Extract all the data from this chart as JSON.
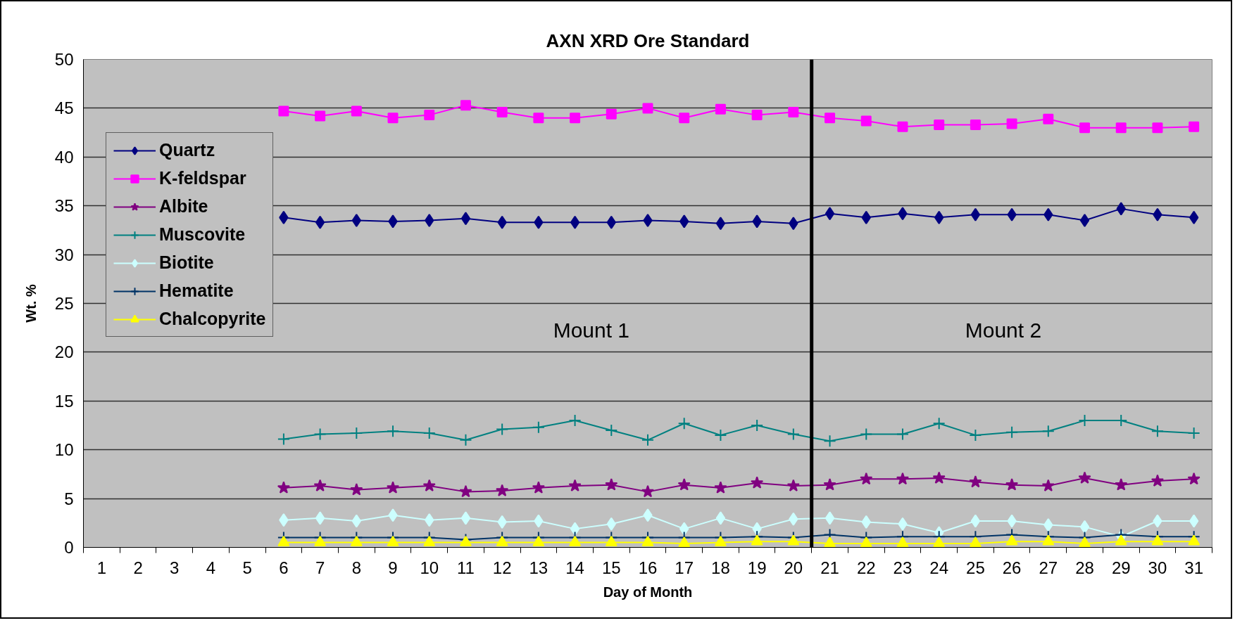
{
  "chart_data": {
    "type": "line",
    "title": "AXN XRD Ore Standard",
    "xlabel": "Day of Month",
    "ylabel": "Wt. %",
    "x": [
      6,
      7,
      8,
      9,
      10,
      11,
      12,
      13,
      14,
      15,
      16,
      17,
      18,
      19,
      20,
      21,
      22,
      23,
      24,
      25,
      26,
      27,
      28,
      29,
      30,
      31
    ],
    "xlim": [
      0.5,
      31.5
    ],
    "xticks": [
      1,
      2,
      3,
      4,
      5,
      6,
      7,
      8,
      9,
      10,
      11,
      12,
      13,
      14,
      15,
      16,
      17,
      18,
      19,
      20,
      21,
      22,
      23,
      24,
      25,
      26,
      27,
      28,
      29,
      30,
      31
    ],
    "ylim": [
      0,
      50
    ],
    "yticks": [
      0,
      5,
      10,
      15,
      20,
      25,
      30,
      35,
      40,
      45,
      50
    ],
    "grid": "y",
    "legend": "top left",
    "line_style": "solid",
    "series": [
      {
        "name": "Quartz",
        "color": "#000080",
        "marker": "diamond",
        "values": [
          33.8,
          33.3,
          33.5,
          33.4,
          33.5,
          33.7,
          33.3,
          33.3,
          33.3,
          33.3,
          33.5,
          33.4,
          33.2,
          33.4,
          33.2,
          34.2,
          33.8,
          34.2,
          33.8,
          34.1,
          34.1,
          34.1,
          33.5,
          34.7,
          34.1,
          33.8
        ]
      },
      {
        "name": "K-feldspar",
        "color": "#ff00ff",
        "marker": "square",
        "values": [
          44.7,
          44.2,
          44.7,
          44.0,
          44.3,
          45.3,
          44.6,
          44.0,
          44.0,
          44.4,
          45.0,
          44.0,
          44.9,
          44.3,
          44.6,
          44.0,
          43.7,
          43.1,
          43.3,
          43.3,
          43.4,
          43.9,
          43.0,
          43.0,
          43.0,
          43.1
        ]
      },
      {
        "name": "Albite",
        "color": "#800080",
        "marker": "star",
        "values": [
          6.1,
          6.3,
          5.9,
          6.1,
          6.3,
          5.7,
          5.8,
          6.1,
          6.3,
          6.4,
          5.7,
          6.4,
          6.1,
          6.6,
          6.3,
          6.4,
          7.0,
          7.0,
          7.1,
          6.7,
          6.4,
          6.3,
          7.1,
          6.4,
          6.8,
          7.0
        ]
      },
      {
        "name": "Muscovite",
        "color": "#008080",
        "marker": "cross",
        "values": [
          11.1,
          11.6,
          11.7,
          11.9,
          11.7,
          11.0,
          12.1,
          12.3,
          13.0,
          12.0,
          11.0,
          12.7,
          11.5,
          12.5,
          11.6,
          10.9,
          11.6,
          11.6,
          12.7,
          11.5,
          11.8,
          11.9,
          13.0,
          13.0,
          11.9,
          11.7
        ]
      },
      {
        "name": "Biotite",
        "color": "#ccffff",
        "marker": "diamond",
        "values": [
          2.8,
          3.0,
          2.7,
          3.3,
          2.8,
          3.0,
          2.6,
          2.7,
          1.9,
          2.4,
          3.3,
          1.9,
          3.0,
          1.9,
          2.9,
          3.0,
          2.6,
          2.4,
          1.5,
          2.7,
          2.7,
          2.3,
          2.1,
          1.1,
          2.7,
          2.7
        ]
      },
      {
        "name": "Hematite",
        "color": "#003366",
        "marker": "cross",
        "values": [
          1.0,
          1.0,
          1.0,
          1.0,
          1.0,
          0.8,
          1.0,
          1.0,
          1.0,
          1.0,
          1.0,
          1.0,
          1.0,
          1.1,
          1.0,
          1.3,
          1.0,
          1.1,
          1.1,
          1.1,
          1.3,
          1.1,
          1.0,
          1.3,
          1.1,
          1.1
        ]
      },
      {
        "name": "Chalcopyrite",
        "color": "#ffff00",
        "marker": "triangle",
        "values": [
          0.5,
          0.5,
          0.5,
          0.5,
          0.5,
          0.5,
          0.5,
          0.5,
          0.5,
          0.5,
          0.5,
          0.4,
          0.5,
          0.6,
          0.6,
          0.4,
          0.4,
          0.4,
          0.4,
          0.4,
          0.6,
          0.6,
          0.4,
          0.6,
          0.6,
          0.6
        ]
      }
    ],
    "ref_lines": [
      {
        "axis": "x",
        "value": 20.5,
        "color": "#000000"
      }
    ],
    "annotations": [
      "Mount 1",
      "Mount 2"
    ]
  }
}
